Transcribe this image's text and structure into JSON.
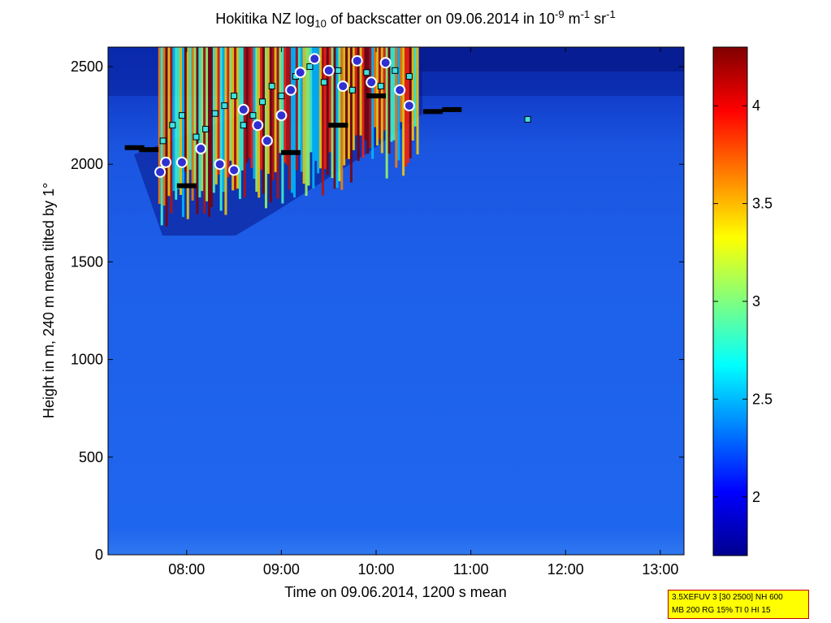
{
  "title": {
    "prefix": "Hokitika NZ log",
    "sub": "10",
    "middle": " of backscatter on 09.06.2014 in 10",
    "sup1": "-9",
    "after_sup1": " m",
    "sup2": "-1",
    "after_sup2": " sr",
    "sup3": "-1"
  },
  "info_box": {
    "line1": "3.5XEFUV 3 [30 2500] NH 600",
    "line2": "MB 200 RG 15% TI 0 HI 15"
  },
  "colors": {
    "background_blue": "#1f5fe8",
    "deep_blue": "#061a8c",
    "cloud_hot": "#c81400",
    "marker_square": "#40e0e0",
    "marker_circle": "#3030d0",
    "marker_circle_edge": "#ffffff",
    "marker_black": "#000000"
  },
  "chart_data": {
    "type": "heatmap",
    "xlabel": "Time on 09.06.2014, 1200 s mean",
    "ylabel": "Height in m, 240 m mean tilted by 1°",
    "xlim": [
      7.17,
      13.25
    ],
    "ylim": [
      0,
      2600
    ],
    "x_ticks": [
      8,
      9,
      10,
      11,
      12,
      13
    ],
    "x_tick_labels": [
      "08:00",
      "09:00",
      "10:00",
      "11:00",
      "12:00",
      "13:00"
    ],
    "y_ticks": [
      0,
      500,
      1000,
      1500,
      2000,
      2500
    ],
    "y_tick_labels": [
      "0",
      "500",
      "1000",
      "1500",
      "2000",
      "2500"
    ],
    "colorbar": {
      "range": [
        1.7,
        4.3
      ],
      "ticks": [
        2,
        2.5,
        3,
        3.5,
        4
      ],
      "tick_labels": [
        "2",
        "2.5",
        "3",
        "3.5",
        "4"
      ],
      "colormap": "jet"
    },
    "grid": false,
    "background_level": 2.25,
    "cloud_layer": {
      "t_start": 7.7,
      "t_end": 10.45,
      "base_m": [
        1950,
        2250
      ],
      "top_m": 2600,
      "peak_value": 4.3
    },
    "markers": [
      {
        "kind": "square",
        "t": 7.75,
        "h": 2120
      },
      {
        "kind": "square",
        "t": 7.85,
        "h": 2200
      },
      {
        "kind": "square",
        "t": 7.95,
        "h": 2250
      },
      {
        "kind": "square",
        "t": 8.1,
        "h": 2140
      },
      {
        "kind": "square",
        "t": 8.2,
        "h": 2180
      },
      {
        "kind": "square",
        "t": 8.3,
        "h": 2260
      },
      {
        "kind": "square",
        "t": 8.4,
        "h": 2300
      },
      {
        "kind": "square",
        "t": 8.5,
        "h": 2350
      },
      {
        "kind": "square",
        "t": 8.6,
        "h": 2200
      },
      {
        "kind": "square",
        "t": 8.7,
        "h": 2250
      },
      {
        "kind": "square",
        "t": 8.8,
        "h": 2320
      },
      {
        "kind": "square",
        "t": 8.9,
        "h": 2400
      },
      {
        "kind": "square",
        "t": 9.0,
        "h": 2350
      },
      {
        "kind": "square",
        "t": 9.15,
        "h": 2450
      },
      {
        "kind": "square",
        "t": 9.3,
        "h": 2500
      },
      {
        "kind": "square",
        "t": 9.45,
        "h": 2420
      },
      {
        "kind": "square",
        "t": 9.6,
        "h": 2480
      },
      {
        "kind": "square",
        "t": 9.75,
        "h": 2380
      },
      {
        "kind": "square",
        "t": 9.9,
        "h": 2470
      },
      {
        "kind": "square",
        "t": 10.05,
        "h": 2400
      },
      {
        "kind": "square",
        "t": 10.2,
        "h": 2480
      },
      {
        "kind": "square",
        "t": 10.35,
        "h": 2450
      },
      {
        "kind": "square",
        "t": 11.6,
        "h": 2230
      },
      {
        "kind": "circle",
        "t": 7.72,
        "h": 1960
      },
      {
        "kind": "circle",
        "t": 7.78,
        "h": 2010
      },
      {
        "kind": "circle",
        "t": 7.95,
        "h": 2010
      },
      {
        "kind": "circle",
        "t": 8.15,
        "h": 2080
      },
      {
        "kind": "circle",
        "t": 8.35,
        "h": 2000
      },
      {
        "kind": "circle",
        "t": 8.5,
        "h": 1970
      },
      {
        "kind": "circle",
        "t": 8.6,
        "h": 2280
      },
      {
        "kind": "circle",
        "t": 8.75,
        "h": 2200
      },
      {
        "kind": "circle",
        "t": 8.85,
        "h": 2120
      },
      {
        "kind": "circle",
        "t": 9.0,
        "h": 2250
      },
      {
        "kind": "circle",
        "t": 9.1,
        "h": 2380
      },
      {
        "kind": "circle",
        "t": 9.2,
        "h": 2470
      },
      {
        "kind": "circle",
        "t": 9.35,
        "h": 2540
      },
      {
        "kind": "circle",
        "t": 9.5,
        "h": 2480
      },
      {
        "kind": "circle",
        "t": 9.65,
        "h": 2400
      },
      {
        "kind": "circle",
        "t": 9.8,
        "h": 2530
      },
      {
        "kind": "circle",
        "t": 9.95,
        "h": 2420
      },
      {
        "kind": "circle",
        "t": 10.1,
        "h": 2520
      },
      {
        "kind": "circle",
        "t": 10.25,
        "h": 2380
      },
      {
        "kind": "circle",
        "t": 10.35,
        "h": 2300
      },
      {
        "kind": "black",
        "t": 7.45,
        "h": 2085
      },
      {
        "kind": "black",
        "t": 7.6,
        "h": 2075
      },
      {
        "kind": "black",
        "t": 8.0,
        "h": 1890
      },
      {
        "kind": "black",
        "t": 9.1,
        "h": 2060
      },
      {
        "kind": "black",
        "t": 9.6,
        "h": 2200
      },
      {
        "kind": "black",
        "t": 10.0,
        "h": 2350
      },
      {
        "kind": "black",
        "t": 10.6,
        "h": 2270
      },
      {
        "kind": "black",
        "t": 10.8,
        "h": 2280
      }
    ]
  }
}
